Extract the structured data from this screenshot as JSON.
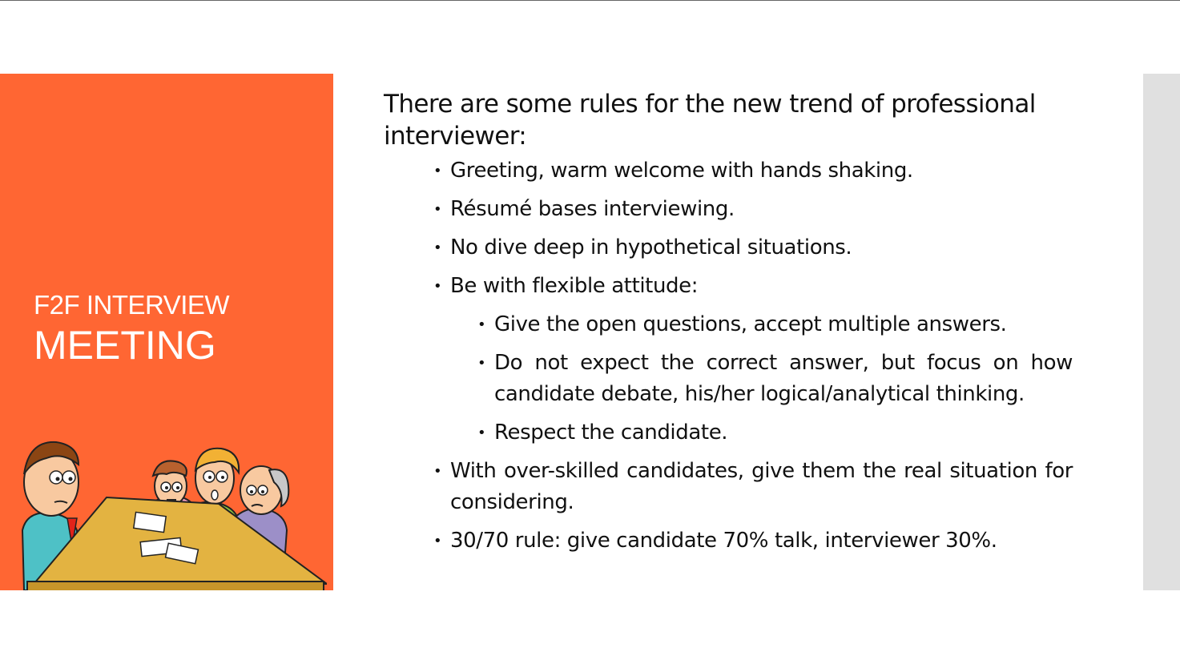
{
  "slide": {
    "section_title_line1": "F2F INTERVIEW",
    "section_title_line2": "MEETING",
    "intro": "There are some rules for the new trend of professional interviewer:",
    "bullets": [
      "Greeting, warm welcome with hands shaking.",
      "Résumé bases interviewing.",
      "No dive deep in hypothetical situations.",
      "Be with flexible attitude:"
    ],
    "sub_bullets": [
      "Give the open questions, accept multiple answers.",
      "Do not expect the correct answer, but focus on how candidate debate, his/her logical/analytical thinking.",
      "Respect the candidate."
    ],
    "bullets_after": [
      "With over-skilled candidates, give them the real situation for considering.",
      "30/70 rule: give candidate 70% talk, interviewer 30%."
    ],
    "bullet_glyph": "•"
  },
  "colors": {
    "panel": "#FF6633",
    "strip": "#E0E0E0",
    "text": "#111111"
  },
  "icons": {
    "illustration": "interview-meeting-illustration"
  }
}
